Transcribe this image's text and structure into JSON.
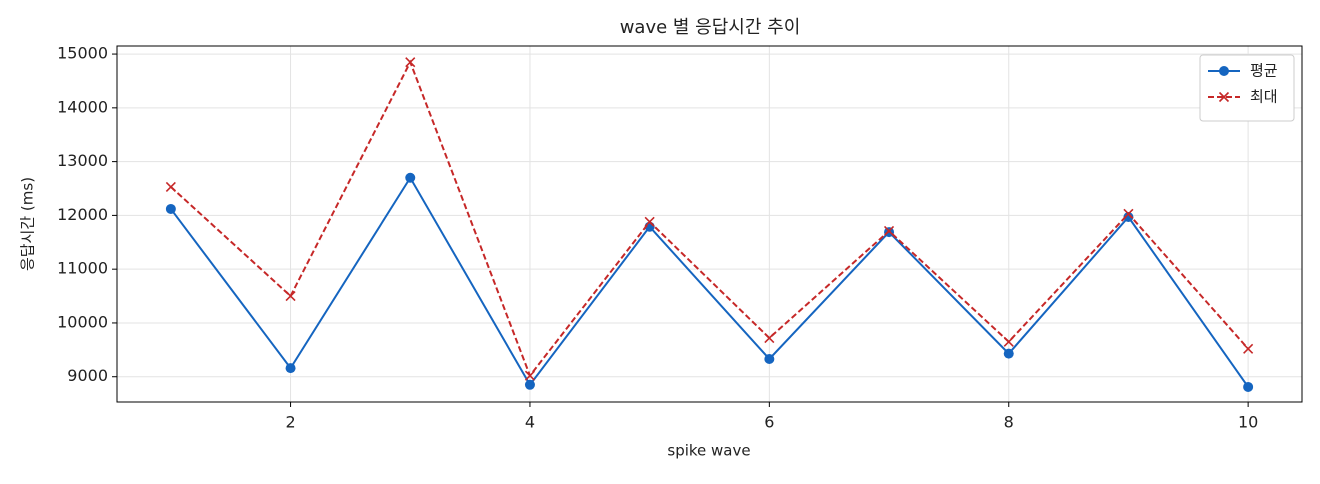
{
  "chart_data": {
    "type": "line",
    "title": "wave 별 응답시간 추이",
    "xlabel": "spike wave",
    "ylabel": "응답시간 (ms)",
    "x": [
      1,
      2,
      3,
      4,
      5,
      6,
      7,
      8,
      9,
      10
    ],
    "series": [
      {
        "name": "평균",
        "color": "#1565c0",
        "marker": "o",
        "linestyle": "solid",
        "values": [
          12120,
          9160,
          12700,
          8850,
          11790,
          9330,
          11690,
          9430,
          11970,
          8810
        ]
      },
      {
        "name": "최대",
        "color": "#c62828",
        "marker": "x",
        "linestyle": "dashed",
        "values": [
          12530,
          10500,
          14850,
          9020,
          11880,
          9720,
          11710,
          9650,
          12030,
          9520
        ]
      }
    ],
    "xlim": [
      0.55,
      10.45
    ],
    "ylim": [
      8530,
      15150
    ],
    "xticks": [
      2,
      4,
      6,
      8,
      10
    ],
    "yticks": [
      9000,
      10000,
      11000,
      12000,
      13000,
      14000,
      15000
    ],
    "grid": true,
    "legend": "upper right"
  }
}
